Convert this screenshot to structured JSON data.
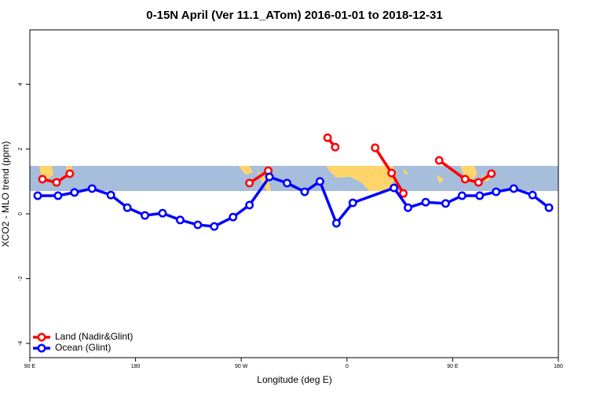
{
  "chart_data": {
    "type": "line",
    "title": "0-15N April (Ver 11.1_ATom)   2016-01-01 to 2018-12-31",
    "x_label": "Longitude (deg E)",
    "y_label": "XCO2 - MLO trend (ppm)",
    "xlim": [
      90,
      540
    ],
    "xticks": [
      {
        "value": 90,
        "label": "90 E"
      },
      180,
      {
        "value": 270,
        "label": "90 W"
      },
      {
        "value": 360,
        "label": "0"
      },
      {
        "value": 450,
        "label": "90 E"
      },
      {
        "value": 540,
        "label": "180"
      }
    ],
    "ylim": [
      -4.44,
      5.68
    ],
    "yticks": [
      -4,
      -2,
      0,
      2,
      4
    ],
    "legend": "bottomleft",
    "series": [
      {
        "name": "Land (Nadir&Glint)",
        "color": "#ff0000",
        "x": [
          100.7,
          112.7,
          124,
          null,
          277,
          293,
          null,
          343.5,
          350,
          null,
          384,
          398,
          408,
          null,
          438.5,
          460.6,
          472,
          483
        ],
        "values": [
          1.07,
          0.97,
          1.24,
          null,
          0.95,
          1.33,
          null,
          2.35,
          2.06,
          null,
          2.04,
          1.26,
          0.63,
          null,
          1.65,
          1.07,
          0.97,
          1.24
        ]
      },
      {
        "name": "Ocean (Glint)",
        "color": "#0000ff",
        "x": [
          96.7,
          114,
          128,
          143,
          159,
          173,
          188,
          203,
          218,
          233,
          247,
          263,
          277,
          294,
          309,
          324,
          337,
          351,
          365,
          400,
          412,
          427,
          444,
          458,
          473,
          487,
          502,
          518,
          532
        ],
        "values": [
          0.56,
          0.56,
          0.66,
          0.78,
          0.58,
          0.19,
          -0.05,
          0.02,
          -0.19,
          -0.34,
          -0.39,
          -0.1,
          0.27,
          1.14,
          0.95,
          0.68,
          1.0,
          -0.29,
          0.34,
          0.8,
          0.19,
          0.36,
          0.32,
          0.56,
          0.56,
          0.68,
          0.78,
          0.58,
          0.19
        ]
      }
    ]
  }
}
